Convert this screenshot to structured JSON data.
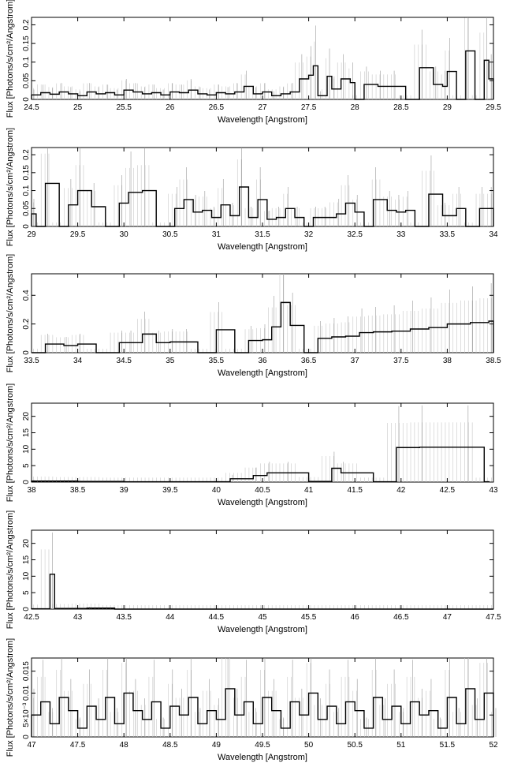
{
  "chart_data": [
    {
      "type": "line",
      "xlabel": "Wavelength [Angstrom]",
      "ylabel": "Flux [Photons/s/cm²/Angstrom]",
      "xlim": [
        24.5,
        29.5
      ],
      "ylim": [
        0,
        0.22
      ],
      "xticks": [
        "24.5",
        "25",
        "25.5",
        "26",
        "26.5",
        "27",
        "27.5",
        "28",
        "28.5",
        "29",
        "29.5"
      ],
      "yticks": [
        {
          "value": 0,
          "label": "0"
        },
        {
          "value": 0.05,
          "label": "0.05"
        },
        {
          "value": 0.1,
          "label": "0.1"
        },
        {
          "value": 0.15,
          "label": "0.15"
        },
        {
          "value": 0.2,
          "label": "0.2"
        }
      ],
      "series": [
        {
          "x": [
            24.5,
            24.6,
            24.7,
            24.8,
            24.9,
            25.0,
            25.1,
            25.2,
            25.3,
            25.4,
            25.5,
            25.6,
            25.7,
            25.8,
            25.9,
            26.0,
            26.1,
            26.2,
            26.3,
            26.4,
            26.5,
            26.6,
            26.7,
            26.8,
            26.9,
            27.0,
            27.1,
            27.2,
            27.3,
            27.4,
            27.5,
            27.55,
            27.6,
            27.7,
            27.75,
            27.85,
            27.95,
            28.0,
            28.1,
            28.25,
            28.4,
            28.55,
            28.7,
            28.85,
            28.95,
            29.0,
            29.1,
            29.2,
            29.3,
            29.4,
            29.45
          ],
          "y": [
            0.012,
            0.018,
            0.014,
            0.02,
            0.015,
            0.01,
            0.02,
            0.015,
            0.018,
            0.012,
            0.025,
            0.02,
            0.015,
            0.018,
            0.012,
            0.02,
            0.018,
            0.025,
            0.015,
            0.012,
            0.018,
            0.015,
            0.02,
            0.035,
            0.015,
            0.02,
            0.01,
            0.015,
            0.02,
            0.055,
            0.065,
            0.09,
            0.01,
            0.062,
            0.028,
            0.055,
            0.045,
            0.0,
            0.04,
            0.035,
            0.035,
            0.0,
            0.085,
            0.04,
            0.035,
            0.075,
            0.0,
            0.13,
            0.0,
            0.105,
            0.055
          ]
        }
      ]
    },
    {
      "type": "line",
      "xlabel": "Wavelength [Angstrom]",
      "ylabel": "Flux [Photons/s/cm²/Angstrom]",
      "xlim": [
        29,
        34
      ],
      "ylim": [
        0,
        0.22
      ],
      "xticks": [
        "29",
        "29.5",
        "30",
        "30.5",
        "31",
        "31.5",
        "32",
        "32.5",
        "33",
        "33.5",
        "34"
      ],
      "yticks": [
        {
          "value": 0,
          "label": "0"
        },
        {
          "value": 0.05,
          "label": "0.05"
        },
        {
          "value": 0.1,
          "label": "0.1"
        },
        {
          "value": 0.15,
          "label": "0.15"
        },
        {
          "value": 0.2,
          "label": "0.2"
        }
      ],
      "series": [
        {
          "x": [
            29.0,
            29.05,
            29.15,
            29.3,
            29.4,
            29.5,
            29.65,
            29.8,
            29.95,
            30.05,
            30.2,
            30.35,
            30.55,
            30.65,
            30.75,
            30.85,
            30.95,
            31.05,
            31.15,
            31.25,
            31.35,
            31.45,
            31.55,
            31.65,
            31.75,
            31.85,
            31.95,
            32.05,
            32.15,
            32.3,
            32.4,
            32.5,
            32.6,
            32.7,
            32.85,
            32.95,
            33.05,
            33.15,
            33.3,
            33.45,
            33.6,
            33.7,
            33.85,
            33.95
          ],
          "y": [
            0.035,
            0.0,
            0.12,
            0.0,
            0.06,
            0.1,
            0.055,
            0.0,
            0.065,
            0.095,
            0.1,
            0.0,
            0.05,
            0.075,
            0.04,
            0.045,
            0.025,
            0.06,
            0.03,
            0.11,
            0.025,
            0.075,
            0.02,
            0.025,
            0.05,
            0.025,
            0.0,
            0.025,
            0.025,
            0.035,
            0.065,
            0.04,
            0.0,
            0.075,
            0.045,
            0.04,
            0.045,
            0.0,
            0.09,
            0.03,
            0.05,
            0.0,
            0.05,
            0.05
          ]
        }
      ]
    },
    {
      "type": "line",
      "xlabel": "Wavelength [Angstrom]",
      "ylabel": "Flux [Photons/s/cm²/Angstrom]",
      "xlim": [
        33.5,
        38.5
      ],
      "ylim": [
        0,
        0.55
      ],
      "xticks": [
        "33.5",
        "34",
        "34.5",
        "35",
        "35.5",
        "36",
        "36.5",
        "37",
        "37.5",
        "38",
        "38.5"
      ],
      "yticks": [
        {
          "value": 0,
          "label": "0"
        },
        {
          "value": 0.2,
          "label": "0.2"
        },
        {
          "value": 0.4,
          "label": "0.4"
        }
      ],
      "series": [
        {
          "x": [
            33.5,
            33.65,
            33.85,
            34.0,
            34.2,
            34.45,
            34.55,
            34.7,
            34.85,
            35.0,
            35.15,
            35.3,
            35.5,
            35.7,
            35.85,
            36.0,
            36.1,
            36.2,
            36.3,
            36.45,
            36.6,
            36.75,
            36.9,
            37.05,
            37.2,
            37.4,
            37.6,
            37.8,
            38.0,
            38.25,
            38.45
          ],
          "y": [
            0.0,
            0.06,
            0.05,
            0.06,
            0.0,
            0.07,
            0.07,
            0.13,
            0.07,
            0.075,
            0.075,
            0.0,
            0.16,
            0.0,
            0.085,
            0.09,
            0.18,
            0.35,
            0.19,
            0.0,
            0.1,
            0.11,
            0.115,
            0.14,
            0.145,
            0.15,
            0.165,
            0.175,
            0.2,
            0.21,
            0.22
          ]
        }
      ]
    },
    {
      "type": "line",
      "xlabel": "Wavelength [Angstrom]",
      "ylabel": "Flux [Photons/s/cm²/Angstrom]",
      "xlim": [
        38,
        43
      ],
      "ylim": [
        0,
        24
      ],
      "xticks": [
        "38",
        "38.5",
        "39",
        "39.5",
        "40",
        "40.5",
        "41",
        "41.5",
        "42",
        "42.5",
        "43"
      ],
      "yticks": [
        {
          "value": 0,
          "label": "0"
        },
        {
          "value": 5,
          "label": "5"
        },
        {
          "value": 10,
          "label": "10"
        },
        {
          "value": 15,
          "label": "15"
        },
        {
          "value": 20,
          "label": "20"
        }
      ],
      "series": [
        {
          "x": [
            38.0,
            38.5,
            39.0,
            39.5,
            40.0,
            40.15,
            40.4,
            40.55,
            40.75,
            41.0,
            41.25,
            41.35,
            41.7,
            41.95,
            42.2,
            42.7,
            42.9
          ],
          "y": [
            0.3,
            0.2,
            0.1,
            0.1,
            0.1,
            1.0,
            2.0,
            2.8,
            2.8,
            0.2,
            4.2,
            2.8,
            0.1,
            10.5,
            10.6,
            10.6,
            0.1
          ]
        }
      ]
    },
    {
      "type": "line",
      "xlabel": "Wavelength [Angstrom]",
      "ylabel": "Flux [Photons/s/cm²/Angstrom]",
      "xlim": [
        42.5,
        47.5
      ],
      "ylim": [
        0,
        24
      ],
      "xticks": [
        "42.5",
        "43",
        "43.5",
        "44",
        "44.5",
        "45",
        "45.5",
        "46",
        "46.5",
        "47",
        "47.5"
      ],
      "yticks": [
        {
          "value": 0,
          "label": "0"
        },
        {
          "value": 5,
          "label": "5"
        },
        {
          "value": 10,
          "label": "10"
        },
        {
          "value": 15,
          "label": "15"
        },
        {
          "value": 20,
          "label": "20"
        }
      ],
      "series": [
        {
          "x": [
            42.5,
            42.7,
            42.75,
            43.1,
            43.4,
            47.5
          ],
          "y": [
            0.1,
            10.6,
            0.2,
            0.3,
            0.0,
            0.0
          ]
        }
      ]
    },
    {
      "type": "line",
      "xlabel": "Wavelength [Angstrom]",
      "ylabel": "Flux [Photons/s/cm²/Angstrom]",
      "xlim": [
        47,
        52
      ],
      "ylim": [
        0,
        0.018
      ],
      "xticks": [
        "47",
        "47.5",
        "48",
        "48.5",
        "49",
        "49.5",
        "50",
        "50.5",
        "51",
        "51.5",
        "52"
      ],
      "yticks": [
        {
          "value": 0,
          "label": "0"
        },
        {
          "value": 0.005,
          "label": "5×10⁻³"
        },
        {
          "value": 0.01,
          "label": "0.01"
        },
        {
          "value": 0.015,
          "label": "0.015"
        }
      ],
      "series": [
        {
          "x": [
            47.0,
            47.1,
            47.2,
            47.3,
            47.4,
            47.5,
            47.6,
            47.7,
            47.8,
            47.9,
            48.0,
            48.1,
            48.2,
            48.3,
            48.4,
            48.5,
            48.6,
            48.7,
            48.8,
            48.9,
            49.0,
            49.1,
            49.2,
            49.3,
            49.4,
            49.5,
            49.6,
            49.7,
            49.8,
            49.9,
            50.0,
            50.1,
            50.2,
            50.3,
            50.4,
            50.5,
            50.6,
            50.7,
            50.8,
            50.9,
            51.0,
            51.1,
            51.2,
            51.3,
            51.4,
            51.5,
            51.6,
            51.7,
            51.8,
            51.9,
            52.0
          ],
          "y": [
            0.005,
            0.008,
            0.003,
            0.009,
            0.006,
            0.002,
            0.007,
            0.004,
            0.009,
            0.003,
            0.01,
            0.006,
            0.004,
            0.008,
            0.002,
            0.007,
            0.005,
            0.009,
            0.003,
            0.006,
            0.004,
            0.011,
            0.005,
            0.008,
            0.003,
            0.009,
            0.006,
            0.002,
            0.008,
            0.005,
            0.01,
            0.004,
            0.007,
            0.003,
            0.008,
            0.006,
            0.002,
            0.009,
            0.004,
            0.007,
            0.003,
            0.008,
            0.005,
            0.006,
            0.002,
            0.009,
            0.003,
            0.011,
            0.004,
            0.01,
            0.003
          ]
        }
      ]
    }
  ]
}
